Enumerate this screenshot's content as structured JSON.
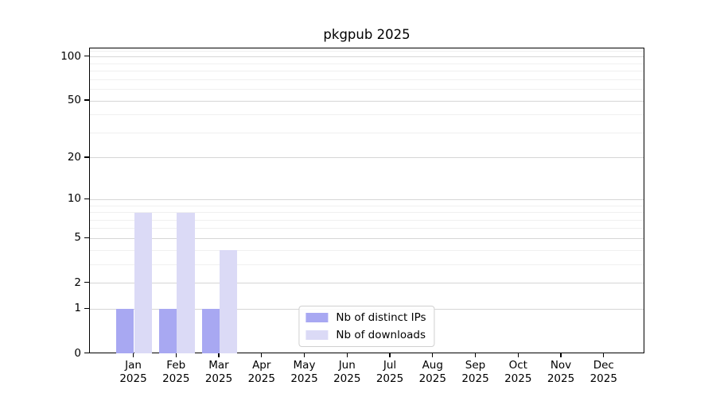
{
  "chart_data": {
    "type": "bar",
    "title": "pkgpub 2025",
    "categories": [
      "Jan",
      "Feb",
      "Mar",
      "Apr",
      "May",
      "Jun",
      "Jul",
      "Aug",
      "Sep",
      "Oct",
      "Nov",
      "Dec"
    ],
    "category_year": "2025",
    "series": [
      {
        "name": "Nb of distinct IPs",
        "color": "#a8a8f2",
        "values": [
          1,
          1,
          1,
          0,
          0,
          0,
          0,
          0,
          0,
          0,
          0,
          0
        ]
      },
      {
        "name": "Nb of downloads",
        "color": "#dbdaf6",
        "values": [
          8,
          8,
          4,
          0,
          0,
          0,
          0,
          0,
          0,
          0,
          0,
          0
        ]
      }
    ],
    "xlabel": "",
    "ylabel": "",
    "yscale": "log1p",
    "ylim": [
      0,
      115
    ],
    "yticks": [
      0,
      1,
      2,
      5,
      10,
      20,
      50,
      100
    ],
    "yticks_minor": [
      3,
      4,
      6,
      7,
      8,
      9,
      30,
      40,
      60,
      70,
      80,
      90,
      110
    ],
    "grid": true,
    "legend_position": "lower center",
    "colors": {
      "grid_major": "#d6d6d6",
      "grid_minor": "#f0f0f0",
      "axis": "#000000",
      "legend_border": "#d0d0d0"
    }
  }
}
